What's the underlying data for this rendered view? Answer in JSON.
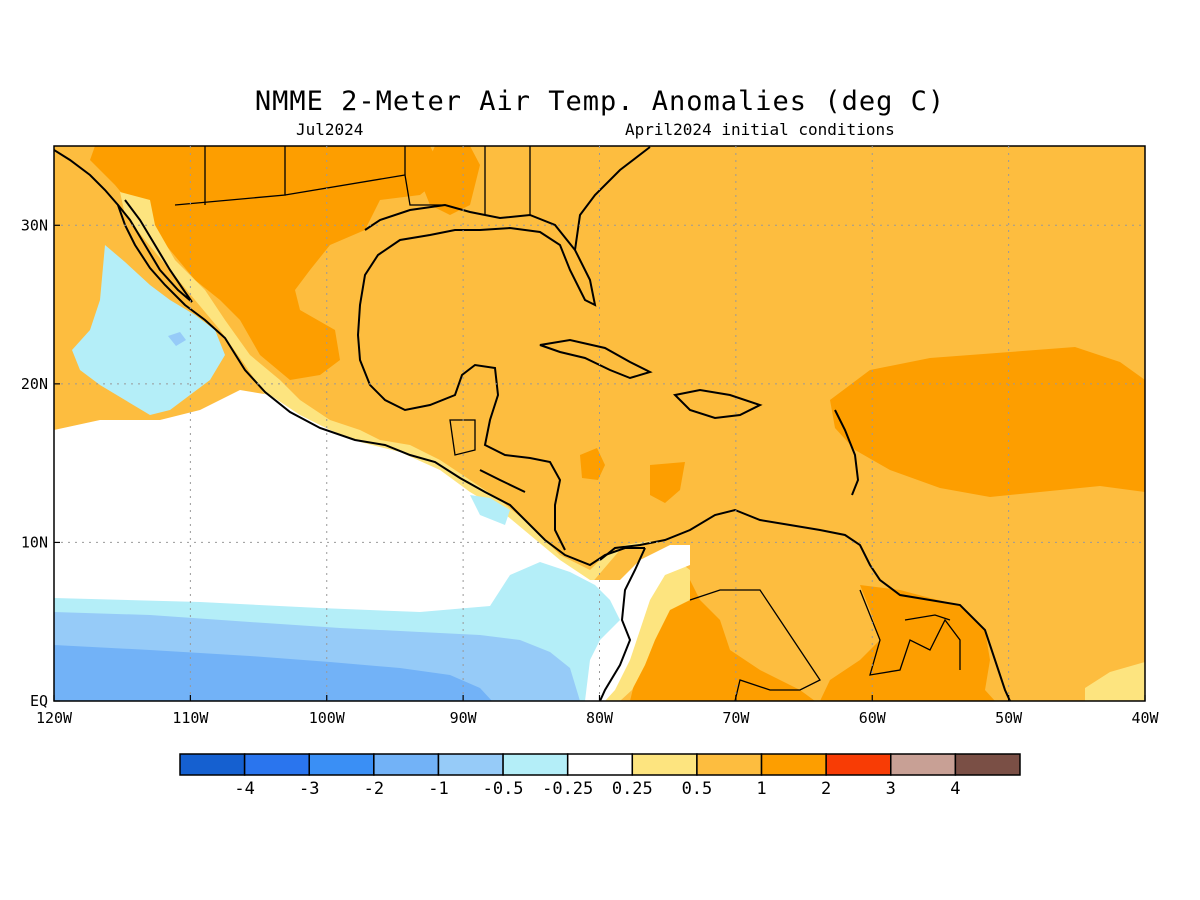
{
  "title": "NMME 2-Meter Air Temp. Anomalies (deg C)",
  "subtitle_left": "Jul2024",
  "subtitle_right": "April2024 initial conditions",
  "map": {
    "lon_range": [
      -120,
      -40
    ],
    "lat_range": [
      0,
      35
    ],
    "x_ticks": [
      {
        "lon": -120,
        "label": "120W"
      },
      {
        "lon": -110,
        "label": "110W"
      },
      {
        "lon": -100,
        "label": "100W"
      },
      {
        "lon": -90,
        "label": "90W"
      },
      {
        "lon": -80,
        "label": "80W"
      },
      {
        "lon": -70,
        "label": "70W"
      },
      {
        "lon": -60,
        "label": "60W"
      },
      {
        "lon": -50,
        "label": "50W"
      },
      {
        "lon": -40,
        "label": "40W"
      }
    ],
    "y_ticks": [
      {
        "lat": 0,
        "label": "EQ"
      },
      {
        "lat": 10,
        "label": "10N"
      },
      {
        "lat": 20,
        "label": "20N"
      },
      {
        "lat": 30,
        "label": "30N"
      }
    ],
    "grid": "dotted"
  },
  "colorbar": {
    "colors": [
      "#1560d0",
      "#2a75ee",
      "#3a8ff5",
      "#72b2f7",
      "#96cbf8",
      "#b4eef8",
      "#ffffff",
      "#fde47f",
      "#fdbd3f",
      "#fd9e00",
      "#f83c05",
      "#c8a095",
      "#7a4f45"
    ],
    "labels": [
      "-4",
      "-3",
      "-2",
      "-1",
      "-0.5",
      "-0.25",
      "0.25",
      "0.5",
      "1",
      "2",
      "3",
      "4"
    ]
  }
}
